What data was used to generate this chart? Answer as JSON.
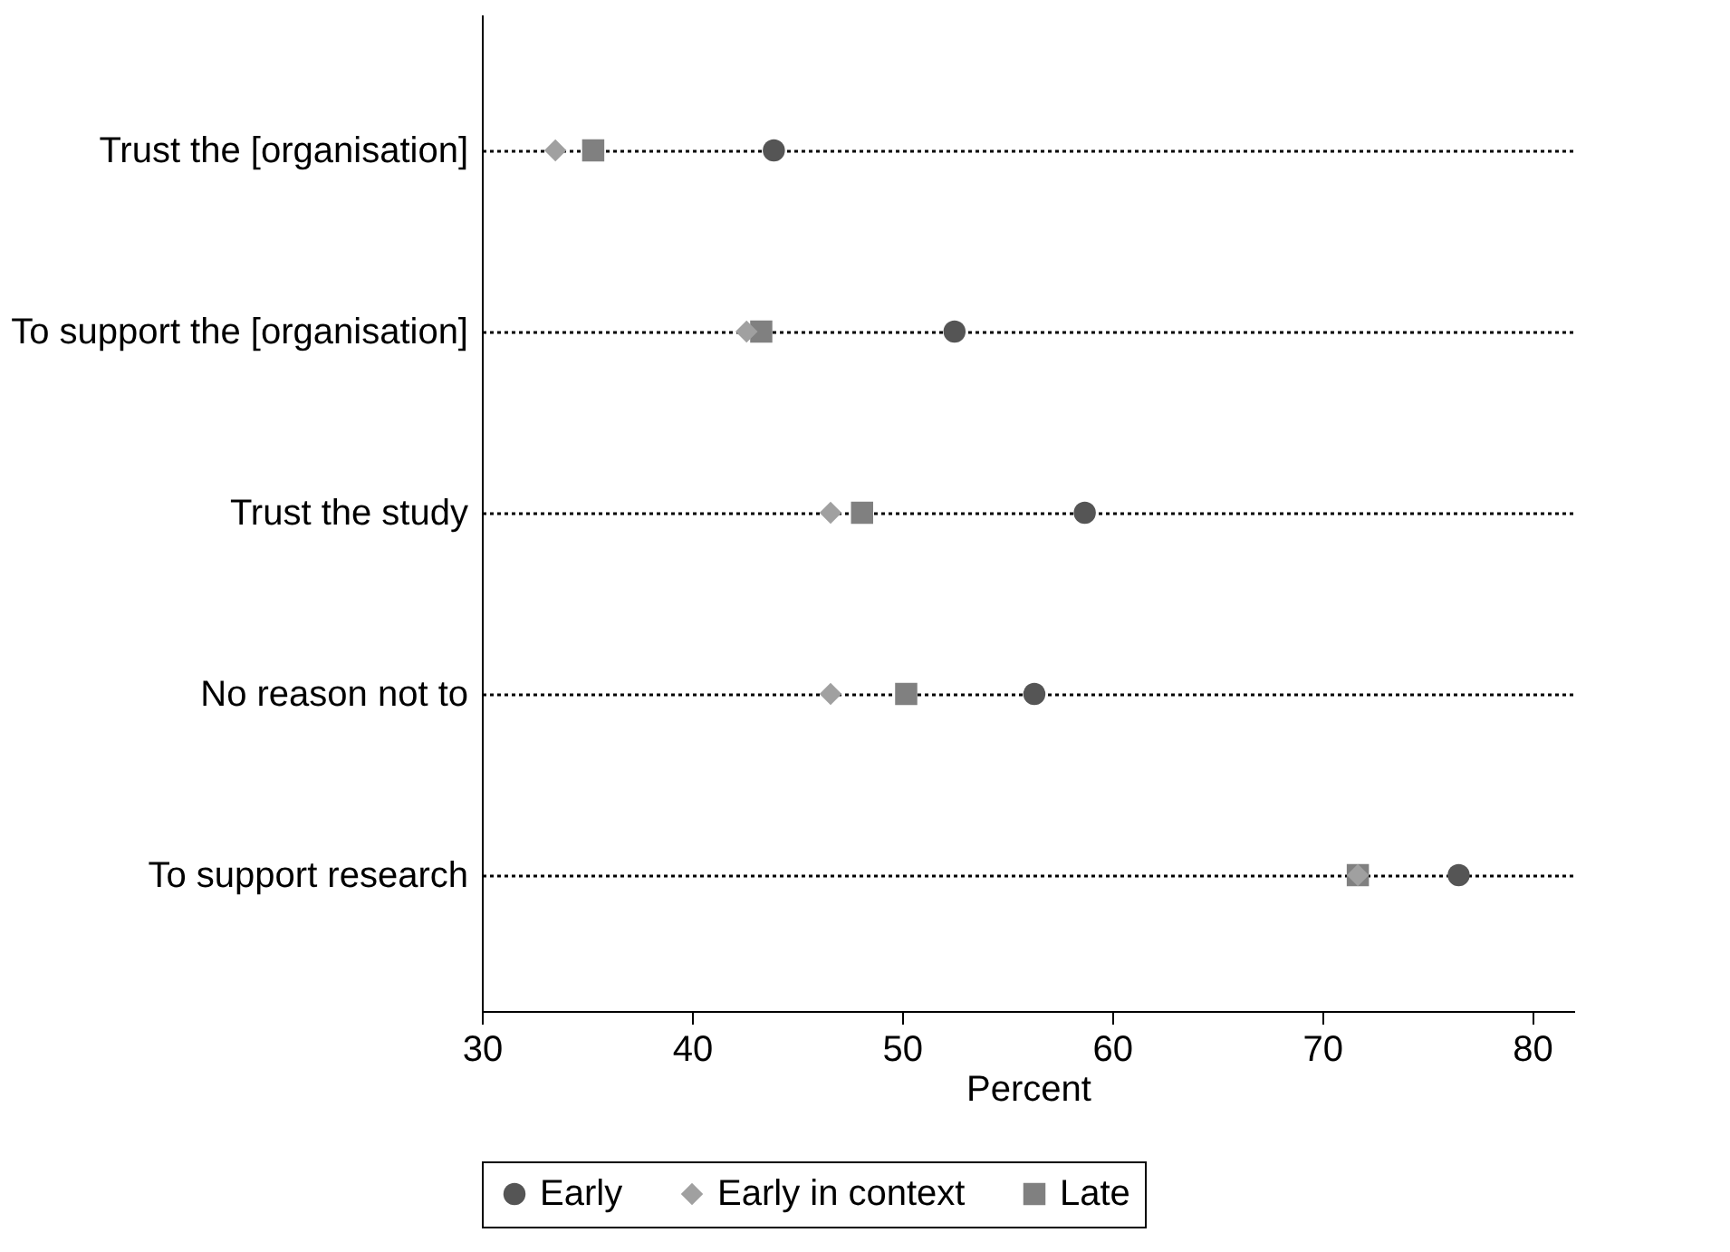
{
  "chart_data": {
    "type": "scatter",
    "xlabel": "Percent",
    "categories": [
      "Trust the [organisation]",
      "To support the [organisation]",
      "Trust the study",
      "No reason not to",
      "To support research"
    ],
    "series": [
      {
        "name": "Early",
        "color": "#555555",
        "marker": "circle",
        "values": [
          43.9,
          52.5,
          58.7,
          56.3,
          76.5
        ]
      },
      {
        "name": "Early in context",
        "color": "#a0a0a0",
        "marker": "diamond",
        "values": [
          33.5,
          42.6,
          46.6,
          46.6,
          71.7
        ]
      },
      {
        "name": "Late",
        "color": "#808080",
        "marker": "square",
        "values": [
          35.3,
          43.3,
          48.1,
          50.2,
          71.7
        ]
      }
    ],
    "xlim": [
      30,
      82
    ],
    "xticks": [
      30,
      40,
      50,
      60,
      70,
      80
    ],
    "orientation": "horizontal",
    "grid": "y",
    "line_style": "dotted",
    "legend": "bottom"
  }
}
